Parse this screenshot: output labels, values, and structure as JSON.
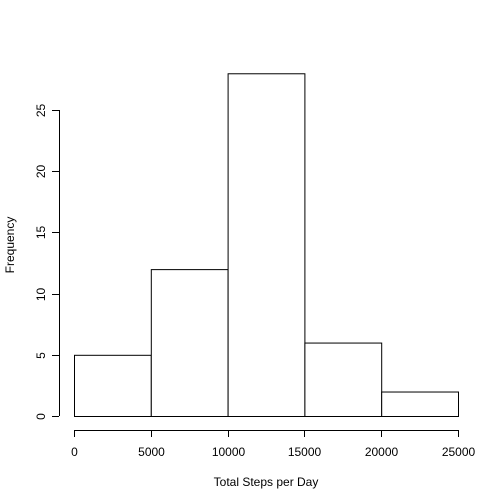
{
  "chart_data": {
    "type": "bar",
    "title": "",
    "xlabel": "Total Steps per Day",
    "ylabel": "Frequency",
    "bins": [
      {
        "start": 0,
        "end": 5000,
        "count": 5
      },
      {
        "start": 5000,
        "end": 10000,
        "count": 12
      },
      {
        "start": 10000,
        "end": 15000,
        "count": 28
      },
      {
        "start": 15000,
        "end": 20000,
        "count": 6
      },
      {
        "start": 20000,
        "end": 25000,
        "count": 2
      }
    ],
    "xlim": [
      0,
      25000
    ],
    "ylim": [
      0,
      28
    ],
    "x_ticks": [
      0,
      5000,
      10000,
      15000,
      20000,
      25000
    ],
    "y_ticks": [
      0,
      5,
      10,
      15,
      20,
      25
    ],
    "grid": false,
    "legend": "none"
  }
}
